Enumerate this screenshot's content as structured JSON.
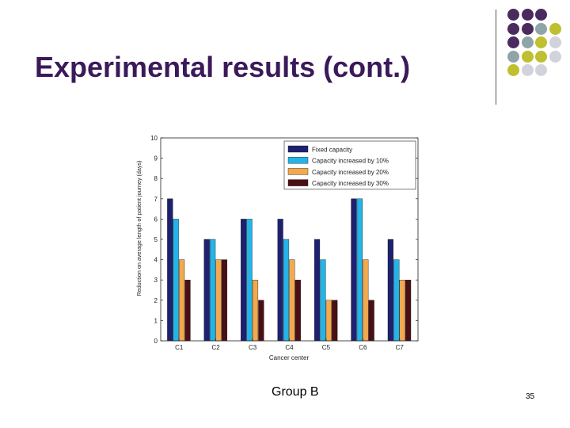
{
  "slide": {
    "title": "Experimental results (cont.)",
    "caption": "Group B",
    "page_number": "35"
  },
  "decoration": {
    "dot_colors": {
      "purple": "#4b2a5e",
      "teal": "#8ea4a8",
      "olive": "#bfbf2f",
      "light": "#d2d2dc"
    },
    "dot_grid": [
      [
        "purple",
        "purple",
        "purple"
      ],
      [
        "purple",
        "purple",
        "teal",
        "olive"
      ],
      [
        "purple",
        "teal",
        "olive",
        "light"
      ],
      [
        "teal",
        "olive",
        "olive",
        "light"
      ],
      [
        "olive",
        "light",
        "light"
      ]
    ]
  },
  "chart_data": {
    "type": "bar",
    "title": "",
    "xlabel": "Cancer center",
    "ylabel": "Reduction on average length of patient journey (days)",
    "ylim": [
      0,
      10
    ],
    "yticks": [
      "0",
      "1",
      "2",
      "3",
      "4",
      "5",
      "6",
      "7",
      "8",
      "9",
      "10"
    ],
    "categories": [
      "C1",
      "C2",
      "C3",
      "C4",
      "C5",
      "C6",
      "C7"
    ],
    "legend_position": "top-right",
    "grid": false,
    "series": [
      {
        "name": "Fixed capacity",
        "color": "#1e2170",
        "values": [
          7,
          5,
          6,
          6,
          5,
          7,
          5
        ]
      },
      {
        "name": "Capacity increased by 10%",
        "color": "#23b4e8",
        "values": [
          6,
          5,
          6,
          5,
          4,
          7,
          4
        ]
      },
      {
        "name": "Capacity increased by 20%",
        "color": "#f3a94d",
        "values": [
          4,
          4,
          3,
          4,
          2,
          4,
          3
        ]
      },
      {
        "name": "Capacity increased by 30%",
        "color": "#4a0f14",
        "values": [
          3,
          4,
          2,
          3,
          2,
          2,
          3
        ]
      }
    ]
  }
}
